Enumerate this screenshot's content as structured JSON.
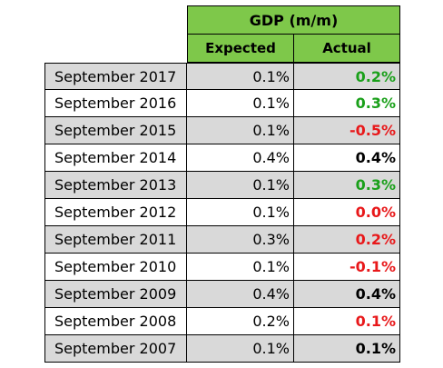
{
  "table": {
    "title": "GDP (m/m)",
    "columns": {
      "expected": "Expected",
      "actual": "Actual"
    },
    "rows": [
      {
        "date": "September 2017",
        "expected": "0.1%",
        "actual": "0.2%",
        "actual_color": "green",
        "shaded": true
      },
      {
        "date": "September 2016",
        "expected": "0.1%",
        "actual": "0.3%",
        "actual_color": "green",
        "shaded": false
      },
      {
        "date": "September 2015",
        "expected": "0.1%",
        "actual": "-0.5%",
        "actual_color": "red",
        "shaded": true
      },
      {
        "date": "September 2014",
        "expected": "0.4%",
        "actual": "0.4%",
        "actual_color": "black",
        "shaded": false
      },
      {
        "date": "September 2013",
        "expected": "0.1%",
        "actual": "0.3%",
        "actual_color": "green",
        "shaded": true
      },
      {
        "date": "September 2012",
        "expected": "0.1%",
        "actual": "0.0%",
        "actual_color": "red",
        "shaded": false
      },
      {
        "date": "September 2011",
        "expected": "0.3%",
        "actual": "0.2%",
        "actual_color": "red",
        "shaded": true
      },
      {
        "date": "September 2010",
        "expected": "0.1%",
        "actual": "-0.1%",
        "actual_color": "red",
        "shaded": false
      },
      {
        "date": "September 2009",
        "expected": "0.4%",
        "actual": "0.4%",
        "actual_color": "black",
        "shaded": true
      },
      {
        "date": "September 2008",
        "expected": "0.2%",
        "actual": "0.1%",
        "actual_color": "red",
        "shaded": false
      },
      {
        "date": "September 2007",
        "expected": "0.1%",
        "actual": "0.1%",
        "actual_color": "black",
        "shaded": true
      }
    ]
  },
  "colors": {
    "header_bg": "#7ec84a",
    "shaded_row_bg": "#d9d9d9",
    "beat": "#1aa01a",
    "miss": "#e8181a",
    "inline": "#000000"
  }
}
